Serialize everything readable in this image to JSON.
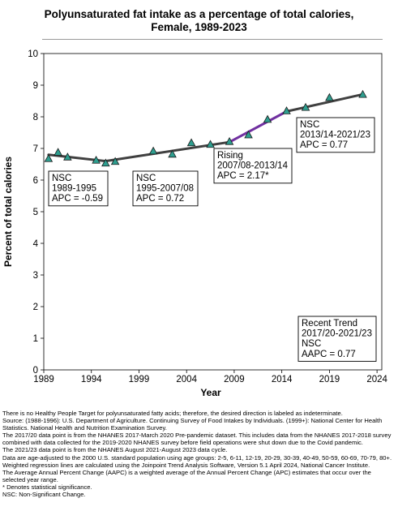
{
  "chart_data": {
    "type": "line",
    "title": "Polyunsaturated fat intake as a percentage of total calories,\nFemale,  1989-2023",
    "xlabel": "Year",
    "ylabel": "Percent of total calories",
    "xlim": [
      1989,
      2024.5
    ],
    "ylim": [
      0,
      10
    ],
    "x_ticks": [
      "1989",
      "1994",
      "1999",
      "2004",
      "2009",
      "2014",
      "2019",
      "2024"
    ],
    "y_ticks": [
      "0",
      "1",
      "2",
      "3",
      "4",
      "5",
      "6",
      "7",
      "8",
      "9",
      "10"
    ],
    "observed": {
      "x": [
        1989.5,
        1990.5,
        1991.5,
        1994.5,
        1995.5,
        1996.5,
        2000.5,
        2002.5,
        2004.5,
        2006.5,
        2008.5,
        2010.5,
        2012.5,
        2014.5,
        2016.5,
        2019.0,
        2022.5
      ],
      "y": [
        6.67,
        6.87,
        6.72,
        6.62,
        6.53,
        6.58,
        6.91,
        6.81,
        7.17,
        7.12,
        7.21,
        7.42,
        7.91,
        8.18,
        8.29,
        8.6,
        8.7
      ]
    },
    "segments": [
      {
        "x": [
          1989.5,
          1995.5
        ],
        "y": [
          6.8,
          6.6
        ],
        "color": "#404040",
        "label": [
          "NSC",
          "1989-1995",
          "APC = -0.59"
        ]
      },
      {
        "x": [
          1995.5,
          2008.5
        ],
        "y": [
          6.6,
          7.2
        ],
        "color": "#404040",
        "label": [
          "NSC",
          "1995-2007/08",
          "APC =  0.72"
        ]
      },
      {
        "x": [
          2008.5,
          2014.5
        ],
        "y": [
          7.2,
          8.17
        ],
        "color": "#7030a0",
        "label": [
          "Rising",
          "2007/08-2013/14",
          "APC =  2.17*"
        ]
      },
      {
        "x": [
          2014.5,
          2022.5
        ],
        "y": [
          8.17,
          8.71
        ],
        "color": "#404040",
        "label": [
          "NSC",
          "2013/14-2021/23",
          "APC =  0.77"
        ]
      }
    ],
    "trend_box": [
      "Recent Trend",
      "2017/20-2021/23",
      "NSC",
      "AAPC =  0.77"
    ],
    "marker_color": "#2e9e8f",
    "grid": false
  },
  "footnotes": [
    "There is no Healthy People Target for polyunsaturated fatty acids; therefore, the desired direction is labeled as indeterminate.",
    "Source: (1988-1996): U.S. Department of Agriculture. Continuing Survey of Food Intakes by Individuals. (1999+): National Center for Health Statistics. National Health and Nutrition Examination Survey.",
    "The 2017/20 data point is from the NHANES 2017-March 2020 Pre-pandemic dataset. This includes data from the NHANES 2017-2018 survey combined with data collected for the 2019-2020 NHANES survey before field operations were shut down due to the Covid pandemic.",
    "The 2021/23 data point is from the NHANES August 2021-August 2023 data cycle.",
    "Data are age-adjusted to the 2000 U.S. standard population using age groups: 2-5, 6-11, 12-19, 20-29, 30-39, 40-49, 50-59, 60-69, 70-79, 80+.",
    "Weighted regression lines are calculated using the Joinpoint Trend Analysis Software, Version 5.1 April 2024, National Cancer Institute.",
    "The Average Annual Percent Change (AAPC) is a weighted average of the Annual Percent Change (APC) estimates that occur over the selected year range.",
    "* Denotes statistical significance.",
    "NSC: Non-Significant Change."
  ]
}
